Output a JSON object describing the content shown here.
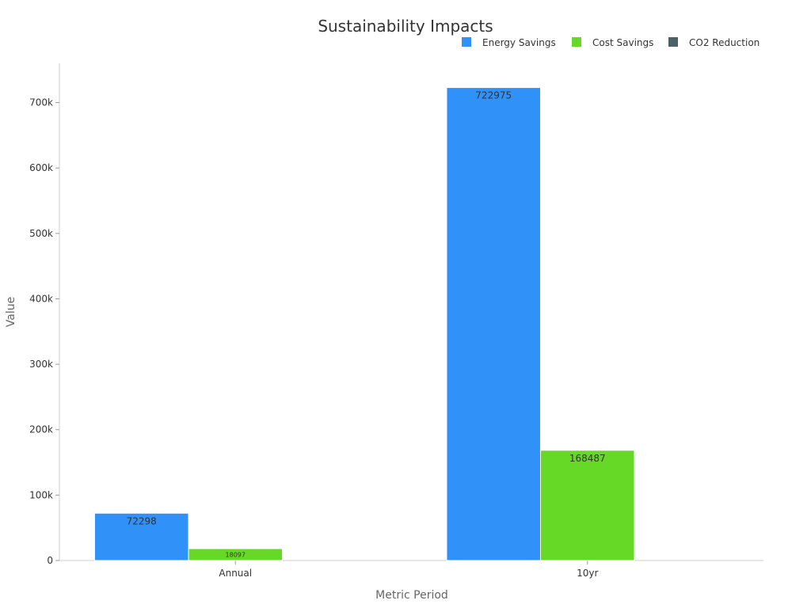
{
  "chart_data": {
    "type": "bar",
    "title": "Sustainability Impacts",
    "xlabel": "Metric Period",
    "ylabel": "Value",
    "categories": [
      "Annual",
      "10yr"
    ],
    "series": [
      {
        "name": "Energy Savings",
        "color": "#3091f9",
        "values": [
          72298,
          722975
        ]
      },
      {
        "name": "Cost Savings",
        "color": "#66d926",
        "values": [
          18097,
          168487
        ]
      },
      {
        "name": "CO2 Reduction",
        "color": "#4a6266",
        "values": [
          0,
          0
        ]
      }
    ],
    "ylim": [
      0,
      760000
    ],
    "yticks": [
      0,
      100000,
      200000,
      300000,
      400000,
      500000,
      600000,
      700000
    ],
    "ytick_labels": [
      "0",
      "100k",
      "200k",
      "300k",
      "400k",
      "500k",
      "600k",
      "700k"
    ],
    "legend_position": "top-right",
    "grid": false
  }
}
